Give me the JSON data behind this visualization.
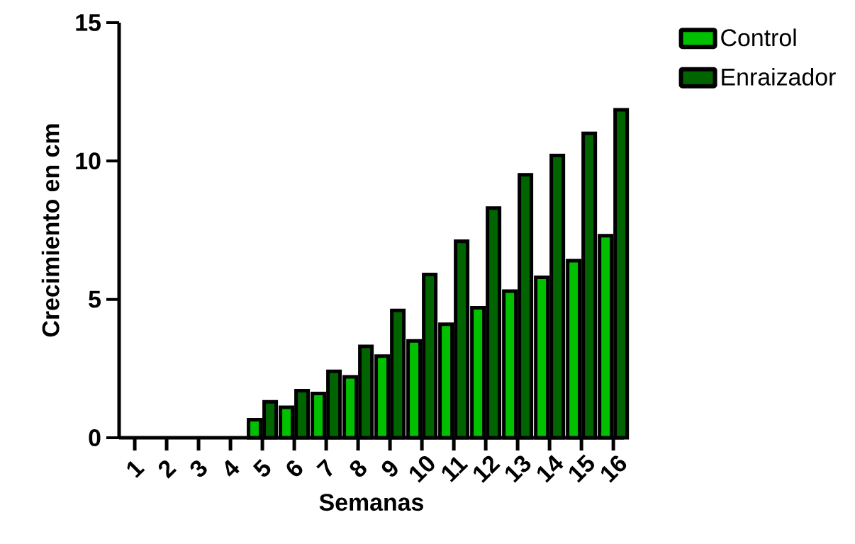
{
  "chart_data": {
    "type": "bar",
    "xlabel": "Semanas",
    "ylabel": "Crecimiento en cm",
    "categories": [
      "1",
      "2",
      "3",
      "4",
      "5",
      "6",
      "7",
      "8",
      "9",
      "10",
      "11",
      "12",
      "13",
      "14",
      "15",
      "16"
    ],
    "series": [
      {
        "name": "Control",
        "color": "#00c000",
        "values": [
          null,
          null,
          null,
          null,
          0.65,
          1.1,
          1.6,
          2.2,
          2.95,
          3.5,
          4.1,
          4.7,
          5.3,
          5.8,
          6.4,
          7.3
        ]
      },
      {
        "name": "Enraizador",
        "color": "#006400",
        "values": [
          null,
          null,
          null,
          null,
          1.3,
          1.7,
          2.4,
          3.3,
          4.6,
          5.9,
          7.1,
          8.3,
          9.5,
          10.2,
          11.0,
          11.85
        ]
      }
    ],
    "ylim": [
      0,
      15
    ],
    "yticks": [
      0,
      5,
      10,
      15
    ],
    "legend": "top right"
  }
}
